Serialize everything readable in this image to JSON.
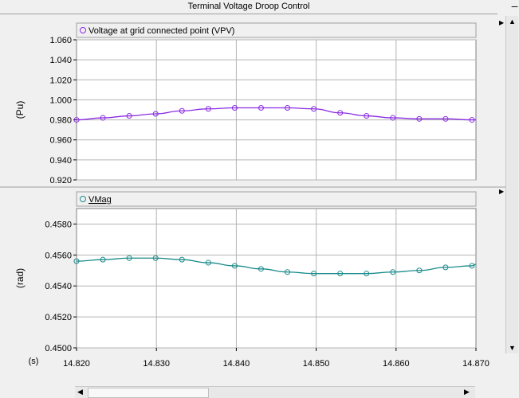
{
  "window": {
    "title": "Terminal Voltage Droop Control"
  },
  "icons": {
    "scroll_up": "up-arrow-icon",
    "scroll_down": "down-arrow-icon",
    "scroll_left": "left-arrow-icon",
    "scroll_right": "right-arrow-icon",
    "panel_expand": "right-triangle-icon",
    "minimize": "minimize-icon"
  },
  "colors": {
    "series1": "#8a2be2",
    "series2": "#1a8a8a",
    "grid": "#b4b4b4",
    "plot_bg": "#ffffff"
  },
  "chart_data": [
    {
      "type": "line",
      "legend": "Voltage at grid connected point (VPV)",
      "ylabel": "(Pu)",
      "ylim": [
        0.92,
        1.06
      ],
      "yticks": [
        "1.060",
        "1.040",
        "1.020",
        "1.000",
        "0.980",
        "0.960",
        "0.940",
        "0.920"
      ],
      "xlim": [
        14.82,
        14.87
      ],
      "series": [
        {
          "name": "Voltage at grid connected point (VPV)",
          "x": [
            14.82,
            14.8233,
            14.8266,
            14.8299,
            14.8332,
            14.8365,
            14.8398,
            14.8431,
            14.8464,
            14.8497,
            14.853,
            14.8563,
            14.8596,
            14.8629,
            14.8662,
            14.8695,
            14.87
          ],
          "values": [
            0.98,
            0.982,
            0.984,
            0.986,
            0.989,
            0.991,
            0.992,
            0.992,
            0.992,
            0.991,
            0.987,
            0.984,
            0.982,
            0.981,
            0.981,
            0.98,
            0.98
          ]
        }
      ]
    },
    {
      "type": "line",
      "legend": "VMag",
      "ylabel": "(rad)",
      "ylim": [
        0.45,
        0.459
      ],
      "yticks": [
        "0.4580",
        "0.4560",
        "0.4540",
        "0.4520",
        "0.4500"
      ],
      "xlim": [
        14.82,
        14.87
      ],
      "xlabel": "(s)",
      "xticks": [
        "14.820",
        "14.830",
        "14.840",
        "14.850",
        "14.860",
        "14.870"
      ],
      "series": [
        {
          "name": "VMag",
          "x": [
            14.82,
            14.8233,
            14.8266,
            14.8299,
            14.8332,
            14.8365,
            14.8398,
            14.8431,
            14.8464,
            14.8497,
            14.853,
            14.8563,
            14.8596,
            14.8629,
            14.8662,
            14.8695,
            14.87
          ],
          "values": [
            0.4556,
            0.4557,
            0.4558,
            0.4558,
            0.4557,
            0.4555,
            0.4553,
            0.4551,
            0.4549,
            0.4548,
            0.4548,
            0.4548,
            0.4549,
            0.455,
            0.4552,
            0.4553,
            0.4554
          ]
        }
      ]
    }
  ]
}
